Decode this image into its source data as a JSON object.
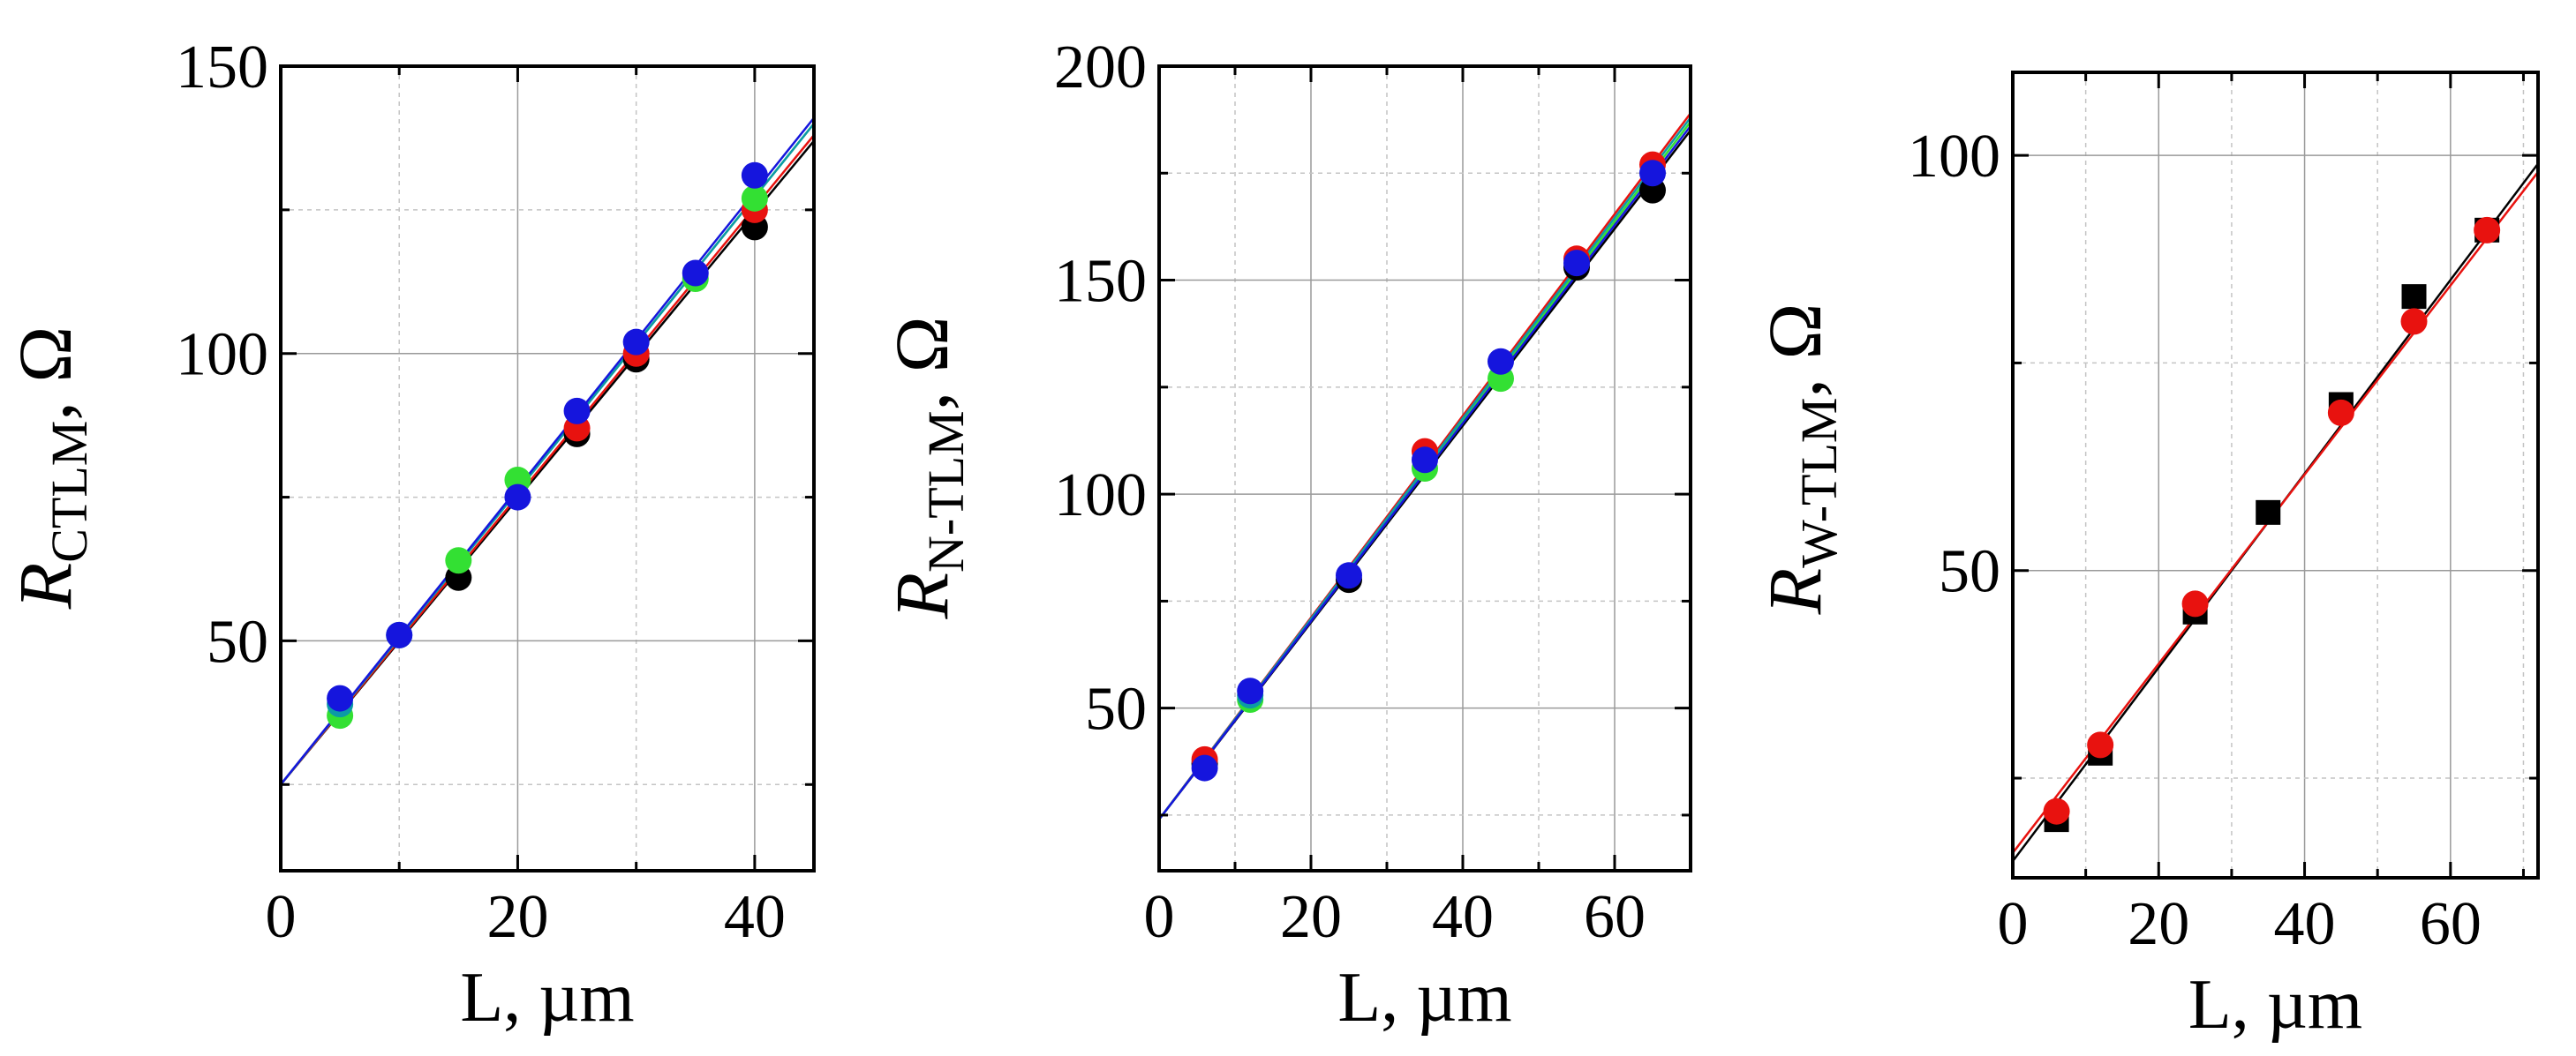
{
  "chart_data": [
    {
      "type": "scatter",
      "id": "ctlm",
      "ylabel_main": "R",
      "ylabel_sub": "CTLM",
      "ylabel_unit": ", Ω",
      "xlabel": "L, µm",
      "xlim": [
        0,
        45
      ],
      "ylim": [
        10,
        150
      ],
      "xticks": [
        0,
        20,
        40
      ],
      "yticks": [
        50,
        100,
        150
      ],
      "grid": true,
      "series": [
        {
          "name": "black",
          "color": "#000000",
          "marker": "circle",
          "x": [
            15,
            25,
            30,
            40
          ],
          "y": [
            61,
            86,
            99,
            122
          ],
          "fit": [
            [
              0,
              25
            ],
            [
              45,
              137
            ]
          ]
        },
        {
          "name": "red",
          "color": "#e8120f",
          "marker": "circle",
          "x": [
            25,
            30,
            40
          ],
          "y": [
            87,
            100,
            125
          ],
          "fit": [
            [
              0,
              25
            ],
            [
              45,
              138
            ]
          ]
        },
        {
          "name": "green",
          "color": "#33e033",
          "marker": "circle",
          "x": [
            5,
            15,
            20,
            35,
            40
          ],
          "y": [
            37,
            64,
            78,
            113,
            127
          ],
          "fit": [
            [
              0,
              25
            ],
            [
              45,
              140
            ]
          ]
        },
        {
          "name": "teal",
          "color": "#0c9aa6",
          "marker": "circle",
          "x": [
            5,
            10
          ],
          "y": [
            39,
            51
          ],
          "fit": [
            [
              0,
              25
            ],
            [
              45,
              140
            ]
          ]
        },
        {
          "name": "blue",
          "color": "#1515dd",
          "marker": "circle",
          "x": [
            5,
            10,
            20,
            25,
            30,
            35,
            40
          ],
          "y": [
            40,
            51,
            75,
            90,
            102,
            114,
            131
          ],
          "fit": [
            [
              0,
              25
            ],
            [
              45,
              141
            ]
          ]
        }
      ]
    },
    {
      "type": "scatter",
      "id": "ntlm",
      "ylabel_main": "R",
      "ylabel_sub": "N-TLM",
      "ylabel_unit": ", Ω",
      "xlabel": "L, µm",
      "xlim": [
        0,
        70
      ],
      "ylim": [
        12,
        200
      ],
      "xticks": [
        0,
        20,
        40,
        60
      ],
      "yticks": [
        50,
        100,
        150,
        200
      ],
      "grid": true,
      "series": [
        {
          "name": "black",
          "color": "#000000",
          "marker": "circle",
          "x": [
            6,
            25,
            55,
            65
          ],
          "y": [
            37,
            80,
            153,
            171
          ],
          "fit": [
            [
              0,
              24
            ],
            [
              70,
              185
            ]
          ]
        },
        {
          "name": "red",
          "color": "#e8120f",
          "marker": "circle",
          "x": [
            6,
            35,
            55,
            65
          ],
          "y": [
            38,
            110,
            155,
            177
          ],
          "fit": [
            [
              0,
              24
            ],
            [
              70,
              189
            ]
          ]
        },
        {
          "name": "green",
          "color": "#33e033",
          "marker": "circle",
          "x": [
            12,
            35,
            45
          ],
          "y": [
            52,
            106,
            127
          ],
          "fit": [
            [
              0,
              24
            ],
            [
              70,
              187
            ]
          ]
        },
        {
          "name": "teal",
          "color": "#0c9aa6",
          "marker": "circle",
          "x": [
            12
          ],
          "y": [
            53
          ],
          "fit": [
            [
              0,
              24
            ],
            [
              70,
              188
            ]
          ]
        },
        {
          "name": "blue",
          "color": "#1515dd",
          "marker": "circle",
          "x": [
            6,
            12,
            25,
            35,
            45,
            55,
            65
          ],
          "y": [
            36,
            54,
            81,
            108,
            131,
            154,
            175
          ],
          "fit": [
            [
              0,
              24
            ],
            [
              70,
              186
            ]
          ]
        }
      ]
    },
    {
      "type": "scatter",
      "id": "wtlm",
      "ylabel_main": "R",
      "ylabel_sub": "W-TLM",
      "ylabel_unit": ", Ω",
      "xlabel": "L, µm",
      "xlim": [
        0,
        72
      ],
      "ylim": [
        13,
        110
      ],
      "xticks": [
        0,
        20,
        40,
        60
      ],
      "yticks": [
        50,
        100
      ],
      "grid": true,
      "series": [
        {
          "name": "black",
          "color": "#000000",
          "marker": "square",
          "x": [
            6,
            12,
            25,
            35,
            45,
            55,
            65
          ],
          "y": [
            20,
            28,
            45,
            57,
            70,
            83,
            91
          ],
          "fit": [
            [
              0,
              15
            ],
            [
              72,
              99
            ]
          ]
        },
        {
          "name": "red",
          "color": "#e8120f",
          "marker": "circle",
          "x": [
            6,
            12,
            25,
            45,
            55,
            65
          ],
          "y": [
            21,
            29,
            46,
            69,
            80,
            91
          ],
          "fit": [
            [
              0,
              16
            ],
            [
              72,
              98
            ]
          ]
        }
      ]
    }
  ]
}
